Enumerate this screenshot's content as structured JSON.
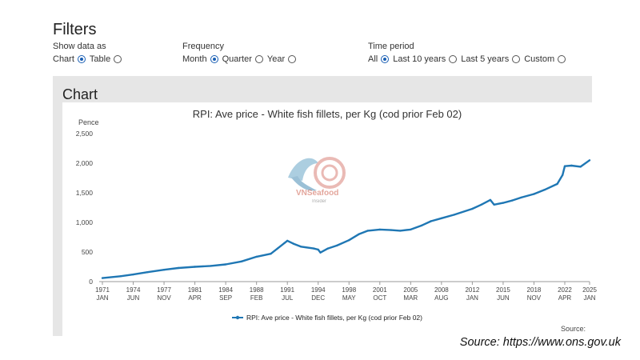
{
  "filters": {
    "title": "Filters",
    "show_data_as": {
      "label": "Show data as",
      "options": [
        "Chart",
        "Table"
      ],
      "selected": "Chart"
    },
    "frequency": {
      "label": "Frequency",
      "options": [
        "Month",
        "Quarter",
        "Year"
      ],
      "selected": "Month"
    },
    "time_period": {
      "label": "Time period",
      "options": [
        "All",
        "Last 10 years",
        "Last 5 years",
        "Custom"
      ],
      "selected": "All"
    }
  },
  "chart_section": {
    "heading": "Chart",
    "source_label": "Source:"
  },
  "watermark": {
    "brand": "VNSeafood",
    "sub": "Insider"
  },
  "caption": "Source: https://www.ons.gov.uk",
  "colors": {
    "series": "#1f77b4",
    "panel": "#e6e6e6"
  },
  "chart_data": {
    "type": "line",
    "title": "RPI: Ave price - White fish fillets, per Kg (cod prior Feb 02)",
    "ylabel": "Pence",
    "ylim": [
      0,
      2500
    ],
    "yticks": [
      0,
      500,
      1000,
      1500,
      2000,
      2500
    ],
    "ytick_labels": [
      "0",
      "500",
      "1,000",
      "1,500",
      "2,000",
      "2,500"
    ],
    "xticks": [
      {
        "year": "1971",
        "month": "JAN"
      },
      {
        "year": "1974",
        "month": "JUN"
      },
      {
        "year": "1977",
        "month": "NOV"
      },
      {
        "year": "1981",
        "month": "APR"
      },
      {
        "year": "1984",
        "month": "SEP"
      },
      {
        "year": "1988",
        "month": "FEB"
      },
      {
        "year": "1991",
        "month": "JUL"
      },
      {
        "year": "1994",
        "month": "DEC"
      },
      {
        "year": "1998",
        "month": "MAY"
      },
      {
        "year": "2001",
        "month": "OCT"
      },
      {
        "year": "2005",
        "month": "MAR"
      },
      {
        "year": "2008",
        "month": "AUG"
      },
      {
        "year": "2012",
        "month": "JAN"
      },
      {
        "year": "2015",
        "month": "JUN"
      },
      {
        "year": "2018",
        "month": "NOV"
      },
      {
        "year": "2022",
        "month": "APR"
      },
      {
        "year": "2025",
        "month": "JAN"
      }
    ],
    "legend_position": "bottom",
    "grid": false,
    "series": [
      {
        "name": "RPI: Ave price - White fish fillets, per Kg (cod prior Feb 02)",
        "points": [
          [
            "1971-01",
            60
          ],
          [
            "1973-01",
            90
          ],
          [
            "1974-06",
            120
          ],
          [
            "1976-01",
            160
          ],
          [
            "1977-11",
            200
          ],
          [
            "1979-06",
            230
          ],
          [
            "1981-04",
            250
          ],
          [
            "1983-01",
            265
          ],
          [
            "1984-09",
            290
          ],
          [
            "1986-06",
            340
          ],
          [
            "1988-02",
            420
          ],
          [
            "1989-09",
            470
          ],
          [
            "1990-06",
            560
          ],
          [
            "1991-03",
            650
          ],
          [
            "1991-07",
            690
          ],
          [
            "1992-03",
            640
          ],
          [
            "1993-01",
            590
          ],
          [
            "1994-06",
            560
          ],
          [
            "1994-12",
            540
          ],
          [
            "1995-03",
            490
          ],
          [
            "1996-01",
            560
          ],
          [
            "1997-01",
            610
          ],
          [
            "1998-05",
            700
          ],
          [
            "1999-06",
            800
          ],
          [
            "2000-06",
            860
          ],
          [
            "2001-10",
            880
          ],
          [
            "2003-01",
            870
          ],
          [
            "2004-01",
            860
          ],
          [
            "2005-03",
            880
          ],
          [
            "2006-06",
            950
          ],
          [
            "2007-06",
            1020
          ],
          [
            "2008-08",
            1070
          ],
          [
            "2010-01",
            1130
          ],
          [
            "2012-01",
            1230
          ],
          [
            "2013-01",
            1300
          ],
          [
            "2014-01",
            1380
          ],
          [
            "2014-06",
            1300
          ],
          [
            "2015-06",
            1330
          ],
          [
            "2016-06",
            1370
          ],
          [
            "2017-06",
            1420
          ],
          [
            "2018-11",
            1480
          ],
          [
            "2020-01",
            1550
          ],
          [
            "2021-06",
            1650
          ],
          [
            "2022-01",
            1800
          ],
          [
            "2022-04",
            1950
          ],
          [
            "2023-01",
            1960
          ],
          [
            "2024-01",
            1940
          ],
          [
            "2025-01",
            2050
          ]
        ]
      }
    ]
  }
}
